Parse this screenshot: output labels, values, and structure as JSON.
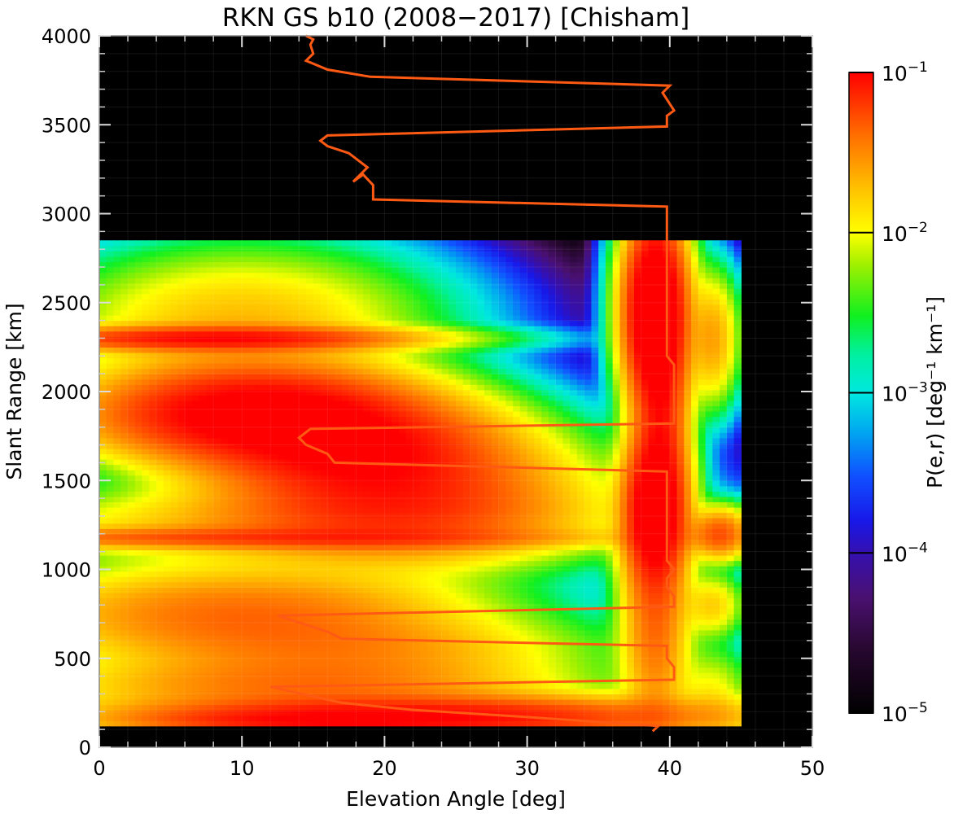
{
  "chart_data": {
    "type": "heatmap",
    "title": "RKN GS b10 (2008−2017) [Chisham]",
    "xlabel": "Elevation Angle [deg]",
    "ylabel": "Slant Range [km]",
    "colorbar_label": "P(e,r) [deg⁻¹ km⁻¹]",
    "xlim": [
      0,
      50
    ],
    "ylim": [
      0,
      4000
    ],
    "xticks": [
      "0",
      "10",
      "20",
      "30",
      "40",
      "50"
    ],
    "yticks": [
      "0",
      "500",
      "1000",
      "1500",
      "2000",
      "2500",
      "3000",
      "3500",
      "4000"
    ],
    "colorbar": {
      "scale": "log",
      "range": [
        1e-05,
        0.1
      ],
      "ticks": [
        {
          "base": "10",
          "exp": "−5",
          "value": 1e-05
        },
        {
          "base": "10",
          "exp": "−4",
          "value": 0.0001
        },
        {
          "base": "10",
          "exp": "−3",
          "value": 0.001
        },
        {
          "base": "10",
          "exp": "−2",
          "value": 0.01
        },
        {
          "base": "10",
          "exp": "−1",
          "value": 0.1
        }
      ]
    },
    "density_blobs": [
      {
        "x": 10,
        "y": 2380,
        "sx": 7,
        "sy": 230,
        "level": 2.3
      },
      {
        "x": 8,
        "y": 2300,
        "sx": 8,
        "sy": 40,
        "level": 2.9
      },
      {
        "x": 11,
        "y": 1880,
        "sx": 6.5,
        "sy": 150,
        "level": 3.1
      },
      {
        "x": 18,
        "y": 1680,
        "sx": 6,
        "sy": 160,
        "level": 2.9
      },
      {
        "x": 21,
        "y": 1400,
        "sx": 7,
        "sy": 190,
        "level": 2.8
      },
      {
        "x": 14,
        "y": 1250,
        "sx": 12,
        "sy": 120,
        "level": 2.3
      },
      {
        "x": 10,
        "y": 1180,
        "sx": 14,
        "sy": 35,
        "level": 2.6
      },
      {
        "x": 10,
        "y": 760,
        "sx": 9,
        "sy": 150,
        "level": 2.6
      },
      {
        "x": 17,
        "y": 540,
        "sx": 9,
        "sy": 120,
        "level": 2.4
      },
      {
        "x": 14,
        "y": 350,
        "sx": 10,
        "sy": 90,
        "level": 2.5
      },
      {
        "x": 22,
        "y": 170,
        "sx": 12,
        "sy": 70,
        "level": 3.0
      },
      {
        "x": 12,
        "y": 150,
        "sx": 6,
        "sy": 40,
        "level": 2.4
      },
      {
        "x": 39,
        "y": 2450,
        "sx": 1.2,
        "sy": 300,
        "level": 3.3
      },
      {
        "x": 39,
        "y": 1350,
        "sx": 1.2,
        "sy": 250,
        "level": 3.2
      },
      {
        "x": 39.5,
        "y": 1900,
        "sx": 1.0,
        "sy": 300,
        "level": 2.7
      },
      {
        "x": 39,
        "y": 700,
        "sx": 1.3,
        "sy": 350,
        "level": 2.6
      },
      {
        "x": 43,
        "y": 2300,
        "sx": 1.0,
        "sy": 200,
        "level": 2.4
      },
      {
        "x": 43.5,
        "y": 1200,
        "sx": 1.2,
        "sy": 80,
        "level": 2.7
      },
      {
        "x": 43,
        "y": 800,
        "sx": 1.2,
        "sy": 100,
        "level": 2.2
      },
      {
        "x": 43,
        "y": 300,
        "sx": 1.5,
        "sy": 150,
        "level": 2.0
      }
    ],
    "series": [
      {
        "type": "line",
        "color": "#ff5a14",
        "points": [
          [
            38.8,
            90
          ],
          [
            39.2,
            120
          ],
          [
            30,
            170
          ],
          [
            22,
            210
          ],
          [
            17,
            250
          ],
          [
            12,
            340
          ],
          [
            40.3,
            380
          ],
          [
            40.3,
            450
          ],
          [
            39.8,
            500
          ],
          [
            39.8,
            570
          ],
          [
            17,
            610
          ],
          [
            16,
            650
          ],
          [
            12.5,
            740
          ],
          [
            40.3,
            790
          ],
          [
            40.3,
            850
          ],
          [
            39.8,
            900
          ],
          [
            39.8,
            950
          ],
          [
            40.3,
            1000
          ],
          [
            39.8,
            1050
          ],
          [
            39.8,
            1550
          ],
          [
            16.5,
            1600
          ],
          [
            16,
            1650
          ],
          [
            14.5,
            1700
          ],
          [
            14,
            1740
          ],
          [
            14.8,
            1790
          ],
          [
            40.3,
            1820
          ],
          [
            40.3,
            2150
          ],
          [
            39.8,
            2200
          ],
          [
            39.8,
            3040
          ],
          [
            19.2,
            3080
          ],
          [
            19.2,
            3160
          ],
          [
            18.5,
            3220
          ],
          [
            17.8,
            3180
          ],
          [
            18.8,
            3260
          ],
          [
            17.5,
            3340
          ],
          [
            16,
            3380
          ],
          [
            15.5,
            3410
          ],
          [
            16,
            3440
          ],
          [
            39.8,
            3490
          ],
          [
            39.8,
            3550
          ],
          [
            40.3,
            3580
          ],
          [
            39.5,
            3680
          ],
          [
            40,
            3720
          ],
          [
            19,
            3770
          ],
          [
            16,
            3810
          ],
          [
            14.5,
            3860
          ],
          [
            15,
            3900
          ],
          [
            14.8,
            3950
          ],
          [
            15,
            3980
          ],
          [
            14.5,
            4000
          ]
        ]
      }
    ]
  }
}
